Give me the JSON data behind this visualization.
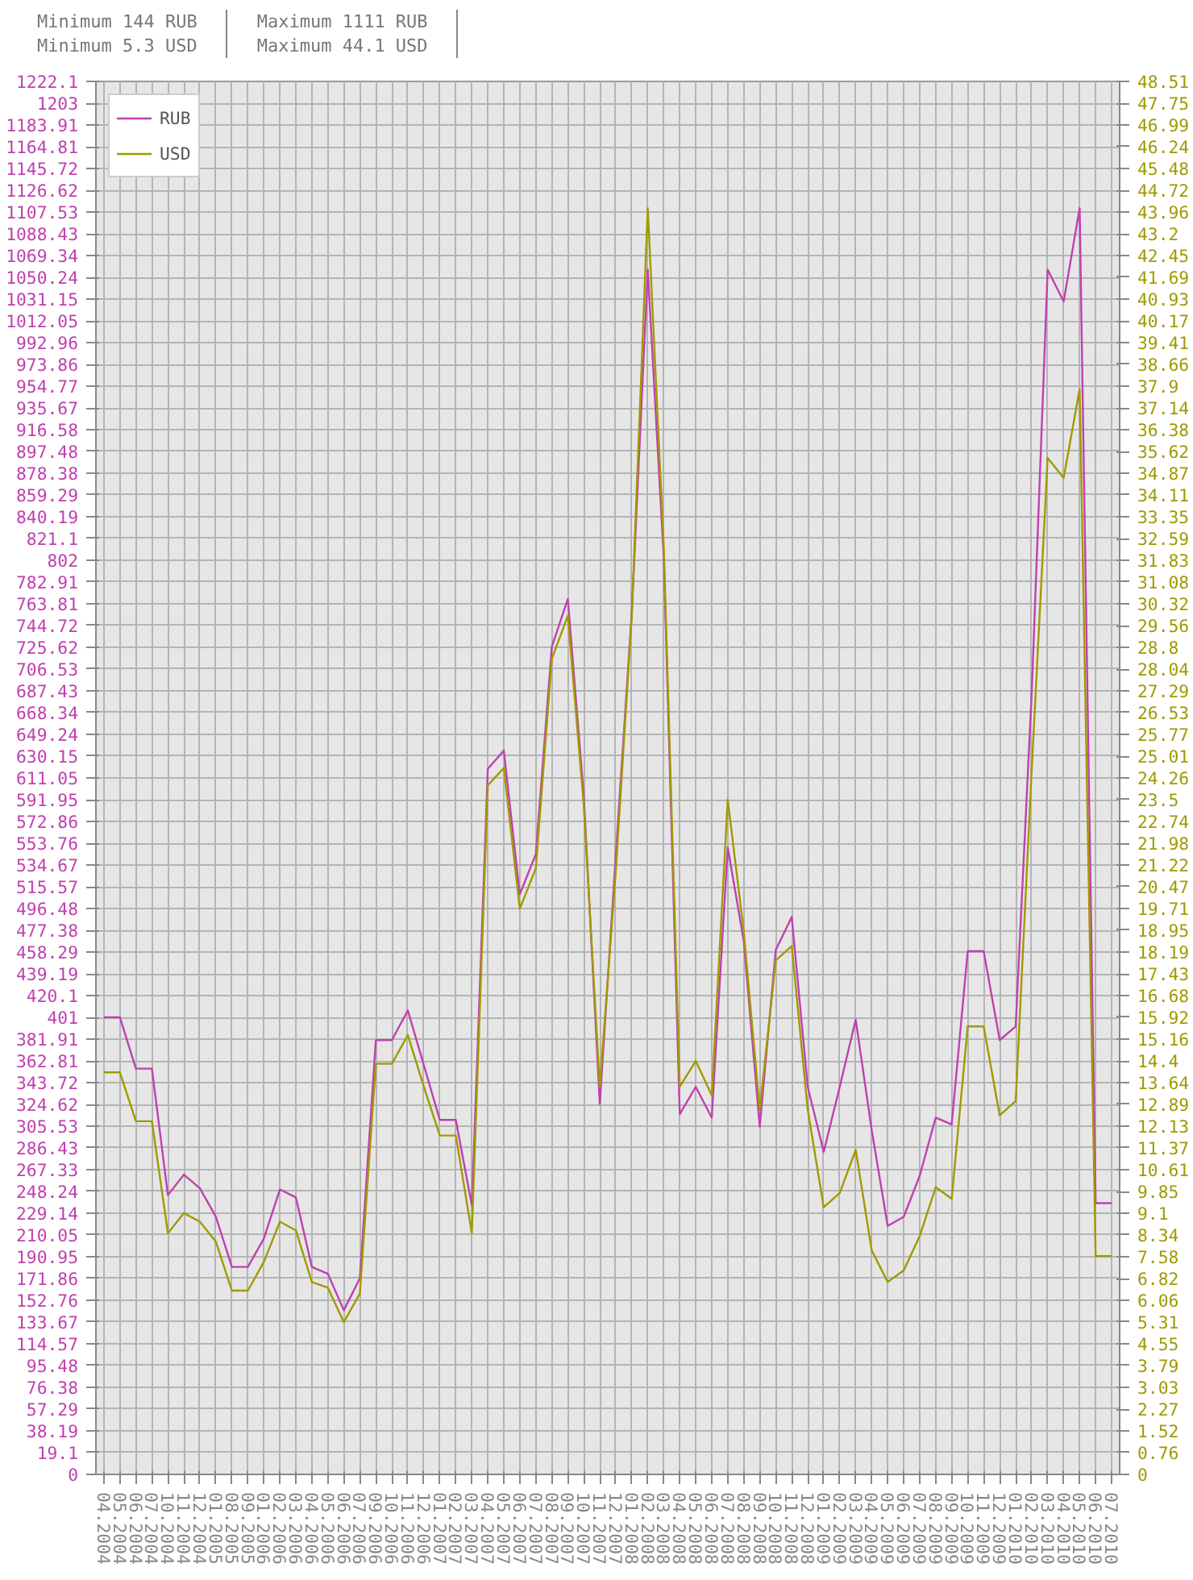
{
  "chart_data": {
    "type": "line",
    "annotations": [
      "Minimum 144 RUB",
      "Minimum 5.3 USD",
      "Maximum 1111 RUB",
      "Maximum 44.1 USD"
    ],
    "categories": [
      "04.2004",
      "05.2004",
      "06.2004",
      "07.2004",
      "10.2004",
      "11.2004",
      "12.2004",
      "01.2005",
      "08.2005",
      "09.2005",
      "01.2006",
      "02.2006",
      "03.2006",
      "04.2006",
      "05.2006",
      "06.2006",
      "07.2006",
      "09.2006",
      "10.2006",
      "11.2006",
      "12.2006",
      "01.2007",
      "02.2007",
      "03.2007",
      "04.2007",
      "05.2007",
      "06.2007",
      "07.2007",
      "08.2007",
      "09.2007",
      "10.2007",
      "11.2007",
      "12.2007",
      "01.2008",
      "02.2008",
      "03.2008",
      "04.2008",
      "05.2008",
      "06.2008",
      "07.2008",
      "08.2008",
      "09.2008",
      "10.2008",
      "11.2008",
      "12.2008",
      "01.2009",
      "02.2009",
      "03.2009",
      "04.2009",
      "05.2009",
      "06.2009",
      "07.2009",
      "08.2009",
      "09.2009",
      "10.2009",
      "11.2009",
      "12.2009",
      "01.2010",
      "02.2010",
      "03.2010",
      "04.2010",
      "05.2010",
      "06.2010",
      "07.2010"
    ],
    "series": [
      {
        "name": "RUB",
        "color": "#c040b0",
        "values": [
          401,
          401,
          356,
          356,
          245,
          263,
          251,
          226,
          182,
          182,
          207,
          250,
          243,
          182,
          176,
          144,
          172,
          381,
          381,
          407,
          359,
          311,
          311,
          236,
          619,
          635,
          509,
          544,
          726,
          768,
          595,
          325,
          543,
          756,
          1057,
          804,
          316,
          340,
          313,
          550,
          468,
          305,
          460,
          489,
          340,
          283,
          340,
          399,
          302,
          218,
          226,
          262,
          313,
          307,
          459,
          459,
          381,
          393,
          685,
          1057,
          1029,
          1111,
          238,
          238
        ]
      },
      {
        "name": "USD",
        "color": "#a09a00",
        "axis": "y2",
        "values": [
          14.0,
          14.0,
          12.3,
          12.3,
          8.4,
          9.1,
          8.8,
          8.1,
          6.4,
          6.4,
          7.4,
          8.8,
          8.5,
          6.7,
          6.5,
          5.3,
          6.3,
          14.3,
          14.3,
          15.3,
          13.5,
          11.8,
          11.8,
          8.4,
          24.0,
          24.6,
          19.7,
          21.1,
          28.4,
          29.9,
          23.3,
          13.5,
          21.0,
          29.9,
          44.1,
          32.3,
          13.5,
          14.4,
          13.2,
          23.5,
          18.9,
          12.7,
          17.9,
          18.4,
          12.7,
          9.3,
          9.8,
          11.3,
          7.8,
          6.7,
          7.1,
          8.3,
          10.0,
          9.6,
          15.6,
          15.6,
          12.5,
          13.0,
          24.5,
          35.4,
          34.7,
          37.8,
          7.6,
          7.6
        ]
      }
    ],
    "ylim": [
      0,
      1222.1
    ],
    "yticks": [
      0,
      19.1,
      38.19,
      57.29,
      76.38,
      95.48,
      114.57,
      133.67,
      152.76,
      171.86,
      190.95,
      210.05,
      229.14,
      248.24,
      267.33,
      286.43,
      305.53,
      324.62,
      343.72,
      362.81,
      381.91,
      401,
      420.1,
      439.19,
      458.29,
      477.38,
      496.48,
      515.57,
      534.67,
      553.76,
      572.86,
      591.95,
      611.05,
      630.15,
      649.24,
      668.34,
      687.43,
      706.53,
      725.62,
      744.72,
      763.81,
      782.91,
      802,
      821.1,
      840.19,
      859.29,
      878.38,
      897.48,
      916.58,
      935.67,
      954.77,
      973.86,
      992.96,
      1012.05,
      1031.15,
      1050.24,
      1069.34,
      1088.43,
      1107.53,
      1126.62,
      1145.72,
      1164.81,
      1183.91,
      1203,
      1222.1
    ],
    "y2lim": [
      0,
      48.51
    ],
    "y2ticks": [
      0,
      0.76,
      1.52,
      2.27,
      3.03,
      3.79,
      4.55,
      5.31,
      6.06,
      6.82,
      7.58,
      8.34,
      9.1,
      9.85,
      10.61,
      11.37,
      12.13,
      12.89,
      13.64,
      14.4,
      15.16,
      15.92,
      16.68,
      17.43,
      18.19,
      18.95,
      19.71,
      20.47,
      21.22,
      21.98,
      22.74,
      23.5,
      24.26,
      25.01,
      25.77,
      26.53,
      27.29,
      28.04,
      28.8,
      29.56,
      30.32,
      31.08,
      31.83,
      32.59,
      33.35,
      34.11,
      34.87,
      35.62,
      36.38,
      37.14,
      37.9,
      38.66,
      39.41,
      40.17,
      40.93,
      41.69,
      42.45,
      43.2,
      43.96,
      44.72,
      45.48,
      46.24,
      46.99,
      47.75,
      48.51
    ],
    "grid": true,
    "legend": "top left",
    "marker": "none",
    "line_style": "solid"
  }
}
